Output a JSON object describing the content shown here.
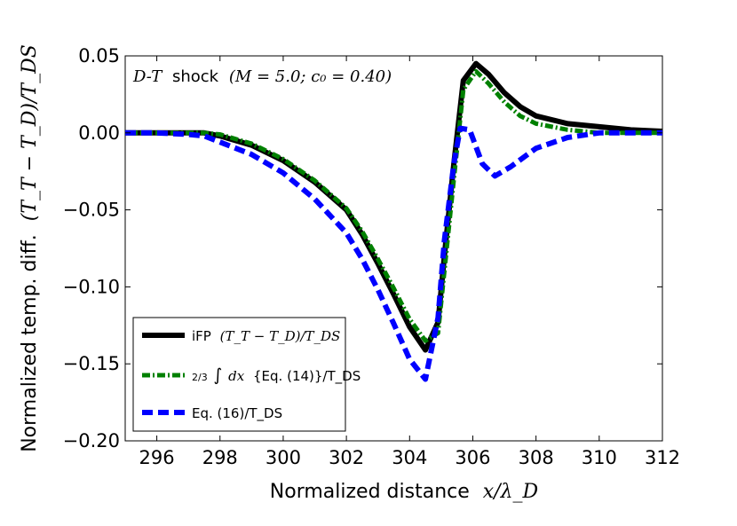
{
  "chart_data": {
    "type": "line",
    "title": "",
    "annotation": {
      "prefix": "D-T",
      "word": "shock",
      "math": "(M = 5.0;  c₀ = 0.40)"
    },
    "xlabel": {
      "text": "Normalized distance",
      "math": "x/λ_D"
    },
    "ylabel": {
      "text": "Normalized temp. diff.",
      "math": "(T_T − T_D)/T_DS"
    },
    "xlim": [
      295,
      312
    ],
    "ylim": [
      -0.2,
      0.05
    ],
    "xticks": [
      296,
      298,
      300,
      302,
      304,
      306,
      308,
      310,
      312
    ],
    "xtick_labels": [
      "296",
      "298",
      "300",
      "302",
      "304",
      "306",
      "308",
      "310",
      "312"
    ],
    "yticks": [
      0.05,
      0.0,
      -0.05,
      -0.1,
      -0.15,
      -0.2
    ],
    "ytick_labels": [
      "0.05",
      "0.00",
      "−0.05",
      "−0.10",
      "−0.15",
      "−0.20"
    ],
    "grid": false,
    "legend_position": "lower-left",
    "series": [
      {
        "name": "iFP (T_T − T_D)/T_DS",
        "legend": {
          "text": "iFP",
          "math": "(T_T − T_D)/T_DS"
        },
        "color": "#000000",
        "style": "solid",
        "x": [
          295,
          296,
          297,
          297.5,
          298,
          299,
          300,
          301,
          302,
          302.5,
          303,
          303.5,
          304,
          304.5,
          304.9,
          305.1,
          305.4,
          305.7,
          306.1,
          306.5,
          307,
          307.5,
          308,
          309,
          310,
          311,
          312
        ],
        "y": [
          0.0,
          0.0,
          0.0,
          0.0,
          -0.002,
          -0.008,
          -0.018,
          -0.032,
          -0.05,
          -0.066,
          -0.085,
          -0.105,
          -0.126,
          -0.141,
          -0.123,
          -0.08,
          -0.02,
          0.034,
          0.045,
          0.038,
          0.026,
          0.017,
          0.011,
          0.006,
          0.004,
          0.002,
          0.001
        ]
      },
      {
        "name": "2/3 ∫dx {Eq. (14)}/T_DS",
        "legend": {
          "frac": "2/3",
          "integral": "∫",
          "math": "dx",
          "text": "{Eq. (14)}/T_DS"
        },
        "color": "#008000",
        "style": "dashdot",
        "x": [
          295,
          296,
          297,
          297.5,
          298,
          299,
          300,
          301,
          302,
          302.5,
          303,
          303.5,
          304,
          304.5,
          304.9,
          305.1,
          305.4,
          305.7,
          306.1,
          306.5,
          307,
          307.5,
          308,
          309,
          310,
          311,
          312
        ],
        "y": [
          0.0,
          0.0,
          0.0,
          0.0,
          -0.001,
          -0.007,
          -0.017,
          -0.031,
          -0.049,
          -0.064,
          -0.082,
          -0.101,
          -0.121,
          -0.135,
          -0.13,
          -0.09,
          -0.03,
          0.028,
          0.04,
          0.032,
          0.02,
          0.011,
          0.006,
          0.002,
          0.0,
          0.0,
          0.0
        ]
      },
      {
        "name": "Eq. (16)/T_DS",
        "legend": {
          "text": "Eq. (16)/T_DS"
        },
        "color": "#0000ff",
        "style": "dashed",
        "x": [
          295,
          296,
          297,
          297.5,
          298,
          299,
          300,
          301,
          302,
          302.5,
          303,
          303.5,
          304,
          304.5,
          304.9,
          305.1,
          305.4,
          305.6,
          305.9,
          306.3,
          306.7,
          307.2,
          308,
          309,
          310,
          311,
          312
        ],
        "y": [
          0.0,
          0.0,
          -0.001,
          -0.002,
          -0.006,
          -0.014,
          -0.026,
          -0.043,
          -0.065,
          -0.082,
          -0.102,
          -0.124,
          -0.147,
          -0.16,
          -0.12,
          -0.07,
          -0.02,
          0.003,
          0.002,
          -0.02,
          -0.028,
          -0.022,
          -0.01,
          -0.003,
          0.0,
          0.0,
          0.0
        ]
      }
    ]
  }
}
